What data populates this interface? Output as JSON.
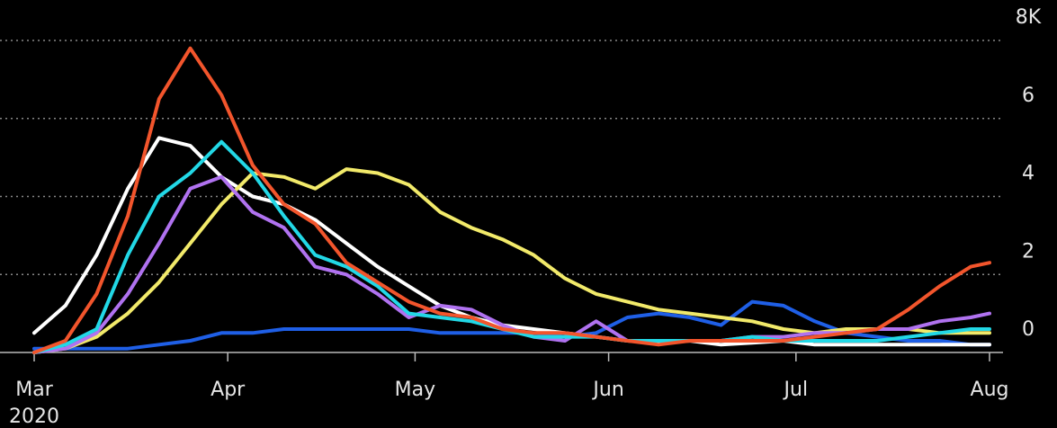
{
  "chart_data": {
    "type": "line",
    "x": [
      0,
      5,
      10,
      15,
      20,
      25,
      30,
      35,
      40,
      45,
      50,
      55,
      60,
      65,
      70,
      75,
      80,
      85,
      90,
      95,
      100,
      105,
      110,
      115,
      120,
      125,
      130,
      135,
      140,
      145,
      150,
      153
    ],
    "xlim": [
      0,
      153
    ],
    "xticks": [
      {
        "value": 0,
        "label": "Mar"
      },
      {
        "value": 31,
        "label": "Apr"
      },
      {
        "value": 61,
        "label": "May"
      },
      {
        "value": 92,
        "label": "Jun"
      },
      {
        "value": 122,
        "label": "Jul"
      },
      {
        "value": 153,
        "label": "Aug"
      }
    ],
    "x_year_label": "2020",
    "ylim": [
      0,
      8
    ],
    "yticks": [
      0,
      2,
      4,
      6,
      {
        "value": 8,
        "label": "8K"
      }
    ],
    "grid": true,
    "series": [
      {
        "color": "#1f5fe6",
        "values": [
          0.1,
          0.1,
          0.1,
          0.1,
          0.2,
          0.3,
          0.5,
          0.5,
          0.6,
          0.6,
          0.6,
          0.6,
          0.6,
          0.5,
          0.5,
          0.5,
          0.5,
          0.4,
          0.5,
          0.9,
          1.0,
          0.9,
          0.7,
          1.3,
          1.2,
          0.8,
          0.5,
          0.4,
          0.3,
          0.3,
          0.2,
          0.2
        ]
      },
      {
        "color": "#ffffff",
        "values": [
          0.5,
          1.2,
          2.5,
          4.2,
          5.5,
          5.3,
          4.5,
          4.0,
          3.8,
          3.4,
          2.8,
          2.2,
          1.7,
          1.2,
          0.9,
          0.7,
          0.6,
          0.5,
          0.4,
          0.3,
          0.25,
          0.3,
          0.2,
          0.25,
          0.3,
          0.2,
          0.2,
          0.2,
          0.2,
          0.2,
          0.2,
          0.2
        ]
      },
      {
        "color": "#f2ea6a",
        "values": [
          0,
          0.1,
          0.4,
          1.0,
          1.8,
          2.8,
          3.8,
          4.6,
          4.5,
          4.2,
          4.7,
          4.6,
          4.3,
          3.6,
          3.2,
          2.9,
          2.5,
          1.9,
          1.5,
          1.3,
          1.1,
          1.0,
          0.9,
          0.8,
          0.6,
          0.5,
          0.6,
          0.6,
          0.6,
          0.5,
          0.5,
          0.5
        ]
      },
      {
        "color": "#b072f0",
        "values": [
          0,
          0.1,
          0.5,
          1.5,
          2.8,
          4.2,
          4.5,
          3.6,
          3.2,
          2.2,
          2.0,
          1.5,
          0.9,
          1.2,
          1.1,
          0.7,
          0.4,
          0.3,
          0.8,
          0.3,
          0.3,
          0.3,
          0.3,
          0.4,
          0.4,
          0.5,
          0.5,
          0.6,
          0.6,
          0.8,
          0.9,
          1.0
        ]
      },
      {
        "color": "#22d8e6",
        "values": [
          0,
          0.2,
          0.6,
          2.5,
          4.0,
          4.6,
          5.4,
          4.6,
          3.5,
          2.5,
          2.2,
          1.7,
          1.0,
          0.9,
          0.8,
          0.6,
          0.4,
          0.4,
          0.4,
          0.3,
          0.3,
          0.3,
          0.3,
          0.4,
          0.3,
          0.3,
          0.3,
          0.3,
          0.4,
          0.5,
          0.6,
          0.6
        ]
      },
      {
        "color": "#f2552c",
        "values": [
          0,
          0.3,
          1.5,
          3.5,
          6.5,
          7.8,
          6.6,
          4.8,
          3.8,
          3.3,
          2.3,
          1.8,
          1.3,
          1.0,
          0.9,
          0.6,
          0.5,
          0.5,
          0.4,
          0.3,
          0.2,
          0.3,
          0.3,
          0.3,
          0.3,
          0.4,
          0.5,
          0.6,
          1.1,
          1.7,
          2.2,
          2.3
        ]
      }
    ]
  }
}
